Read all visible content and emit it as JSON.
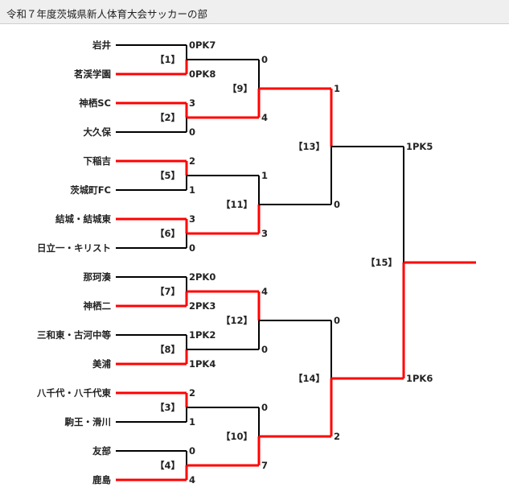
{
  "title": "令和７年度茨城県新人体育大会サッカーの部",
  "colors": {
    "winner_line": "#ff0000",
    "loser_line": "#000000"
  },
  "teams": [
    "岩井",
    "茗渓学園",
    "神栖SC",
    "大久保",
    "下稲吉",
    "茨城町FC",
    "結城・結城東",
    "日立一・キリスト",
    "那珂湊",
    "神栖二",
    "三和東・古河中等",
    "美浦",
    "八千代・八千代東",
    "駒王・滑川",
    "友部",
    "鹿島"
  ],
  "rounds": [
    {
      "matches": [
        {
          "label": "【1】",
          "scores": [
            "0PK7",
            "0PK8"
          ],
          "winner": 1
        },
        {
          "label": "【2】",
          "scores": [
            "3",
            "0"
          ],
          "winner": 0
        },
        {
          "label": "【5】",
          "scores": [
            "2",
            "1"
          ],
          "winner": 0
        },
        {
          "label": "【6】",
          "scores": [
            "3",
            "0"
          ],
          "winner": 0
        },
        {
          "label": "【7】",
          "scores": [
            "2PK0",
            "2PK3"
          ],
          "winner": 1
        },
        {
          "label": "【8】",
          "scores": [
            "1PK2",
            "1PK4"
          ],
          "winner": 1
        },
        {
          "label": "【3】",
          "scores": [
            "2",
            "1"
          ],
          "winner": 0
        },
        {
          "label": "【4】",
          "scores": [
            "0",
            "4"
          ],
          "winner": 1
        }
      ]
    },
    {
      "matches": [
        {
          "label": "【9】",
          "scores": [
            "0",
            "4"
          ],
          "winner": 1
        },
        {
          "label": "【11】",
          "scores": [
            "1",
            "3"
          ],
          "winner": 1
        },
        {
          "label": "【12】",
          "scores": [
            "4",
            "0"
          ],
          "winner": 0
        },
        {
          "label": "【10】",
          "scores": [
            "0",
            "7"
          ],
          "winner": 1
        }
      ]
    },
    {
      "matches": [
        {
          "label": "【13】",
          "scores": [
            "1",
            "0"
          ],
          "winner": 0
        },
        {
          "label": "【14】",
          "scores": [
            "0",
            "2"
          ],
          "winner": 1
        }
      ]
    },
    {
      "matches": [
        {
          "label": "【15】",
          "scores": [
            "1PK5",
            "1PK6"
          ],
          "winner": 1
        }
      ]
    }
  ]
}
